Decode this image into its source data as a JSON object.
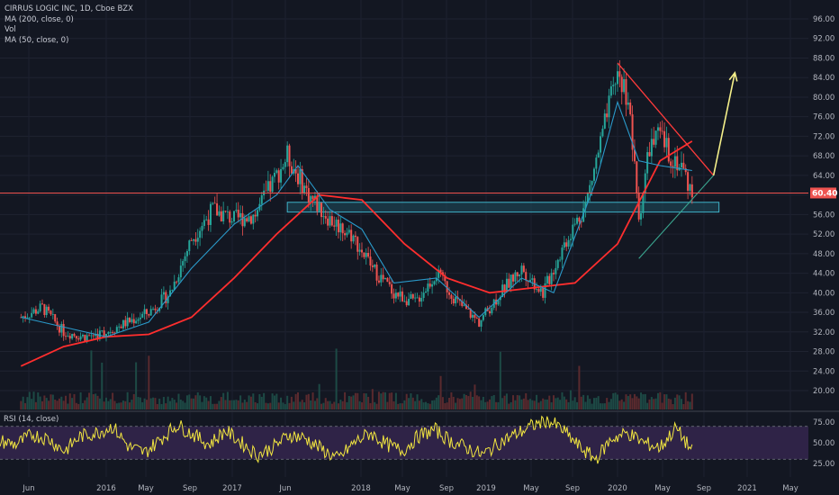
{
  "legend": {
    "symbol": "CIRRUS LOGIC INC, 1D, Cboe BZX",
    "ma200": "MA (200, close, 0)",
    "vol": "Vol",
    "ma50": "MA (50, close, 0)"
  },
  "rsi_label": "RSI (14, close)",
  "last_price_label": "60.40",
  "colors": {
    "background": "#131722",
    "up_candle": "#26a69a",
    "down_candle": "#ef5350",
    "ma200": "#ff2e2e",
    "ma50": "#2a99c9",
    "rsi_line": "#f2e640",
    "rsi_band": "#2f2347",
    "arrow": "#f5f08a",
    "trendline_upper": "#ff3b3b",
    "trendline_lower": "#26a69a",
    "support_zone": "#1f4e5f"
  },
  "chart_data": [
    {
      "type": "candlestick",
      "title": "CIRRUS LOGIC INC, 1D, Cboe BZX",
      "x_tick_labels": [
        "Jun",
        "2016",
        "May",
        "Sep",
        "2017",
        "Jun",
        "2018",
        "May",
        "Sep",
        "2019",
        "May",
        "Sep",
        "2020",
        "May",
        "Sep",
        "2021",
        "May"
      ],
      "y_tick_labels": [
        "96.00",
        "92.00",
        "88.00",
        "84.00",
        "80.00",
        "76.00",
        "72.00",
        "68.00",
        "64.00",
        "60.00",
        "56.00",
        "52.00",
        "48.00",
        "44.00",
        "40.00",
        "36.00",
        "32.00",
        "28.00",
        "24.00",
        "20.00"
      ],
      "ylim": [
        18,
        98
      ],
      "y_scale": "linear",
      "grid": true,
      "last_price": 60.4,
      "price_path": [
        {
          "date": "2015-05",
          "close": 35
        },
        {
          "date": "2015-07",
          "close": 37
        },
        {
          "date": "2015-09",
          "close": 32
        },
        {
          "date": "2015-11",
          "close": 31
        },
        {
          "date": "2016-01",
          "close": 32
        },
        {
          "date": "2016-03",
          "close": 34
        },
        {
          "date": "2016-05",
          "close": 36
        },
        {
          "date": "2016-07",
          "close": 40
        },
        {
          "date": "2016-09",
          "close": 51
        },
        {
          "date": "2016-11",
          "close": 57
        },
        {
          "date": "2017-01",
          "close": 55
        },
        {
          "date": "2017-03",
          "close": 56
        },
        {
          "date": "2017-05",
          "close": 64
        },
        {
          "date": "2017-06",
          "close": 68
        },
        {
          "date": "2017-08",
          "close": 60
        },
        {
          "date": "2017-10",
          "close": 55
        },
        {
          "date": "2017-12",
          "close": 52
        },
        {
          "date": "2018-02",
          "close": 45
        },
        {
          "date": "2018-04",
          "close": 40
        },
        {
          "date": "2018-06",
          "close": 38
        },
        {
          "date": "2018-08",
          "close": 44
        },
        {
          "date": "2018-10",
          "close": 38
        },
        {
          "date": "2018-12",
          "close": 34
        },
        {
          "date": "2019-02",
          "close": 40
        },
        {
          "date": "2019-04",
          "close": 45
        },
        {
          "date": "2019-06",
          "close": 40
        },
        {
          "date": "2019-08",
          "close": 50
        },
        {
          "date": "2019-10",
          "close": 58
        },
        {
          "date": "2019-12",
          "close": 76
        },
        {
          "date": "2020-01",
          "close": 85
        },
        {
          "date": "2020-02",
          "close": 80
        },
        {
          "date": "2020-03",
          "close": 55
        },
        {
          "date": "2020-04",
          "close": 70
        },
        {
          "date": "2020-05",
          "close": 72
        },
        {
          "date": "2020-06",
          "close": 68
        },
        {
          "date": "2020-07",
          "close": 66
        },
        {
          "date": "2020-08",
          "close": 60.4
        }
      ],
      "series": [
        {
          "name": "MA (200, close, 0)",
          "values": [
            {
              "date": "2015-05",
              "value": 25
            },
            {
              "date": "2015-09",
              "value": 29
            },
            {
              "date": "2016-01",
              "value": 31
            },
            {
              "date": "2016-05",
              "value": 31.5
            },
            {
              "date": "2016-09",
              "value": 35
            },
            {
              "date": "2017-01",
              "value": 43
            },
            {
              "date": "2017-05",
              "value": 52
            },
            {
              "date": "2017-09",
              "value": 60
            },
            {
              "date": "2018-01",
              "value": 59
            },
            {
              "date": "2018-05",
              "value": 50
            },
            {
              "date": "2018-09",
              "value": 43
            },
            {
              "date": "2019-01",
              "value": 40
            },
            {
              "date": "2019-05",
              "value": 41
            },
            {
              "date": "2019-09",
              "value": 42
            },
            {
              "date": "2020-01",
              "value": 50
            },
            {
              "date": "2020-05",
              "value": 67
            },
            {
              "date": "2020-08",
              "value": 71
            }
          ]
        },
        {
          "name": "MA (50, close, 0)",
          "values": [
            {
              "date": "2015-05",
              "value": 35
            },
            {
              "date": "2015-09",
              "value": 33
            },
            {
              "date": "2016-01",
              "value": 31
            },
            {
              "date": "2016-05",
              "value": 34
            },
            {
              "date": "2016-09",
              "value": 45
            },
            {
              "date": "2017-01",
              "value": 54
            },
            {
              "date": "2017-05",
              "value": 60
            },
            {
              "date": "2017-07",
              "value": 66
            },
            {
              "date": "2017-10",
              "value": 57
            },
            {
              "date": "2018-01",
              "value": 53
            },
            {
              "date": "2018-04",
              "value": 42
            },
            {
              "date": "2018-08",
              "value": 43
            },
            {
              "date": "2018-12",
              "value": 35
            },
            {
              "date": "2019-04",
              "value": 43
            },
            {
              "date": "2019-07",
              "value": 40
            },
            {
              "date": "2019-11",
              "value": 63
            },
            {
              "date": "2020-01",
              "value": 79
            },
            {
              "date": "2020-03",
              "value": 67
            },
            {
              "date": "2020-05",
              "value": 66
            },
            {
              "date": "2020-08",
              "value": 65
            }
          ]
        }
      ],
      "annotations": {
        "support_zone": {
          "from": "2017-06",
          "to": "2020-09",
          "low": 56.5,
          "high": 58.5
        },
        "upper_trendline": [
          {
            "date": "2020-01",
            "value": 87
          },
          {
            "date": "2020-09",
            "value": 64
          }
        ],
        "lower_trendline": [
          {
            "date": "2020-03",
            "value": 47
          },
          {
            "date": "2020-09",
            "value": 64
          }
        ],
        "projection_arrow": [
          {
            "date": "2020-09",
            "value": 64
          },
          {
            "date": "2020-11",
            "value": 85
          }
        ]
      }
    },
    {
      "type": "line",
      "title": "RSI (14, close)",
      "y_tick_labels": [
        "75.00",
        "50.00",
        "25.00"
      ],
      "ylim": [
        15,
        85
      ],
      "bands": [
        30,
        70
      ],
      "series": [
        {
          "name": "RSI (14, close)",
          "values": [
            52,
            48,
            60,
            55,
            40,
            58,
            62,
            70,
            45,
            38,
            55,
            72,
            60,
            48,
            65,
            50,
            35,
            45,
            60,
            55,
            42,
            30,
            50,
            62,
            48,
            40,
            58,
            66,
            52,
            44,
            35,
            50,
            60,
            70,
            78,
            65,
            45,
            30,
            55,
            62,
            50,
            44,
            68,
            40
          ]
        }
      ]
    }
  ]
}
